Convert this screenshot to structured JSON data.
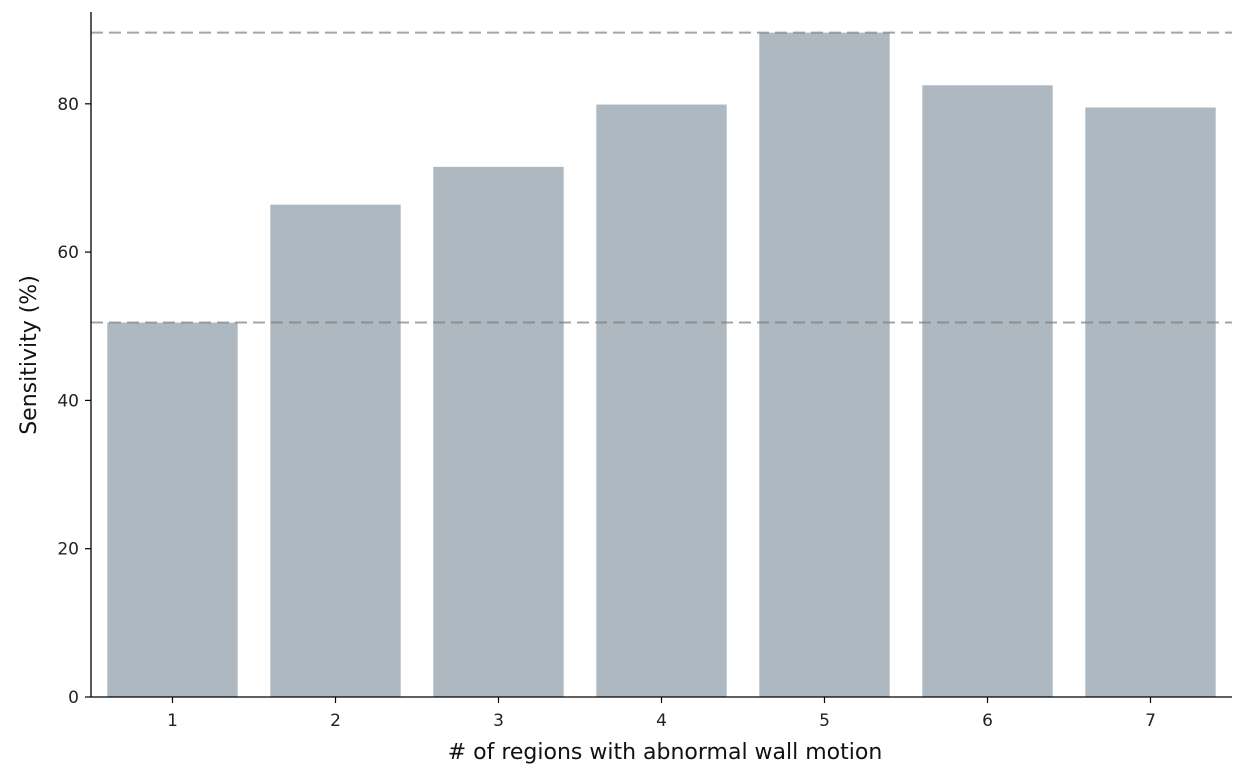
{
  "chart_data": {
    "type": "bar",
    "title": "",
    "xlabel": "# of regions with abnormal wall motion",
    "ylabel": "Sensitivity (%)",
    "categories": [
      "1",
      "2",
      "3",
      "4",
      "5",
      "6",
      "7"
    ],
    "values": [
      50.5,
      66.4,
      71.5,
      79.9,
      89.6,
      82.5,
      79.5
    ],
    "ylim": [
      0,
      94
    ],
    "yticks": [
      0,
      20,
      40,
      60,
      80
    ],
    "reference_lines": [
      89.6,
      50.5
    ],
    "grid": false,
    "bar_color": "#aeb8c1",
    "reference_line_color": "#7f7f7f"
  }
}
